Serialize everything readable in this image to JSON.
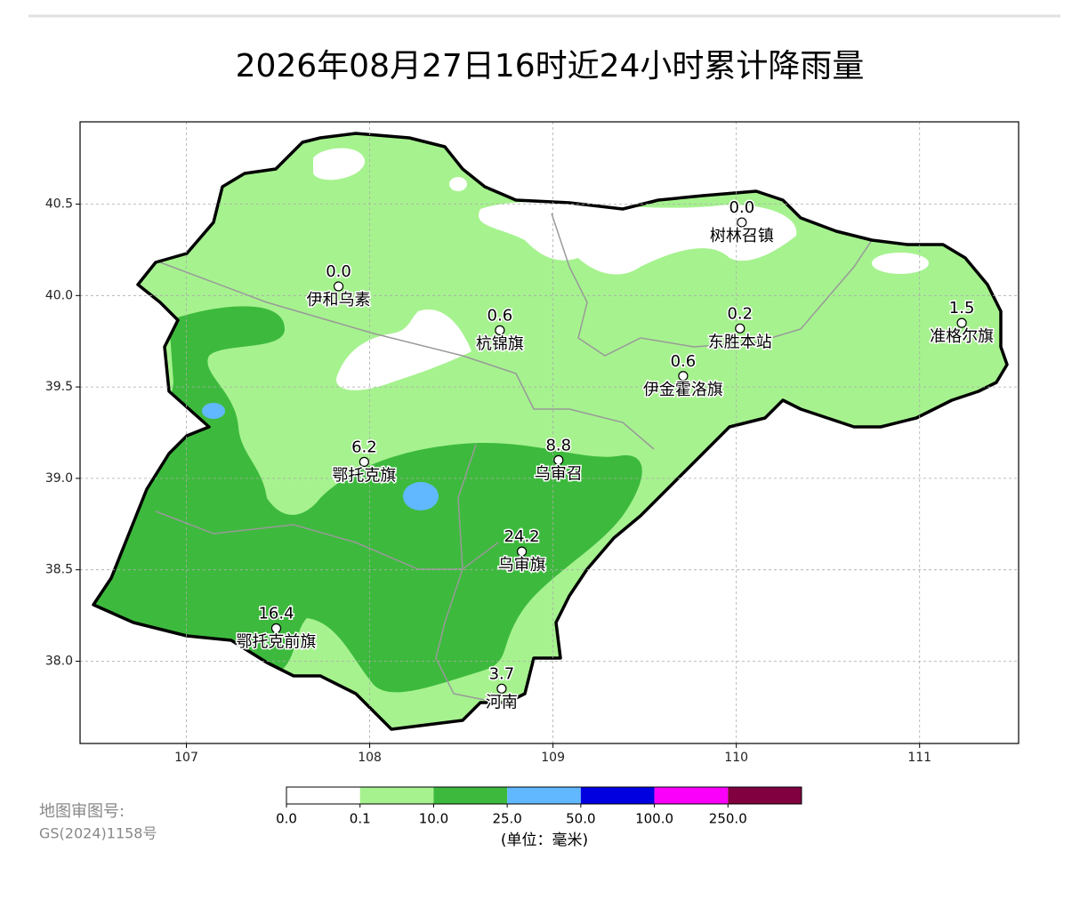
{
  "title": "2026年08月27日16时近24小时累计降雨量",
  "map": {
    "xlim": [
      106.42,
      111.54
    ],
    "ylim": [
      37.55,
      40.95
    ],
    "xticks": [
      107,
      108,
      109,
      110,
      111
    ],
    "yticks": [
      {
        "value": 38,
        "label": "38.0"
      },
      38.5,
      {
        "value": 39,
        "label": "39.0"
      },
      39.5,
      {
        "value": 40,
        "label": "40.0"
      },
      40.5
    ],
    "grid": true,
    "stations": [
      {
        "name": "伊和乌素",
        "lon": 107.83,
        "lat": 40.05,
        "value": 0,
        "value_label": "0.0"
      },
      {
        "name": "树林召镇",
        "lon": 110.03,
        "lat": 40.4,
        "value": 0,
        "value_label": "0.0"
      },
      {
        "name": "杭锦旗",
        "lon": 108.71,
        "lat": 39.81,
        "value": 0.6
      },
      {
        "name": "东胜本站",
        "lon": 110.02,
        "lat": 39.82,
        "value": 0.2
      },
      {
        "name": "准格尔旗",
        "lon": 111.23,
        "lat": 39.85,
        "value": 1.5
      },
      {
        "name": "伊金霍洛旗",
        "lon": 109.71,
        "lat": 39.56,
        "value": 0.6
      },
      {
        "name": "鄂托克旗",
        "lon": 107.97,
        "lat": 39.09,
        "value": 6.2
      },
      {
        "name": "乌审召",
        "lon": 109.03,
        "lat": 39.1,
        "value": 8.8
      },
      {
        "name": "乌审旗",
        "lon": 108.83,
        "lat": 38.6,
        "value": 24.2
      },
      {
        "name": "鄂托克前旗",
        "lon": 107.49,
        "lat": 38.18,
        "value": 16.4
      },
      {
        "name": "河南",
        "lon": 108.72,
        "lat": 37.85,
        "value": 3.7
      }
    ]
  },
  "colorbar": {
    "levels": [
      {
        "value": 0,
        "label": "0.0"
      },
      0.1,
      {
        "value": 10,
        "label": "10.0"
      },
      {
        "value": 25,
        "label": "25.0"
      },
      {
        "value": 50,
        "label": "50.0"
      },
      {
        "value": 100,
        "label": "100.0"
      },
      {
        "value": 250,
        "label": "250.0"
      }
    ],
    "colors": [
      "#ffffff",
      "#a6f28f",
      "#3dba3d",
      "#61b8ff",
      "#0000e1",
      "#fa00fa",
      "#800040"
    ],
    "unit": "(单位：毫米)"
  },
  "footer": {
    "label": "地图审图号:",
    "code": "GS(2024)1158号"
  }
}
